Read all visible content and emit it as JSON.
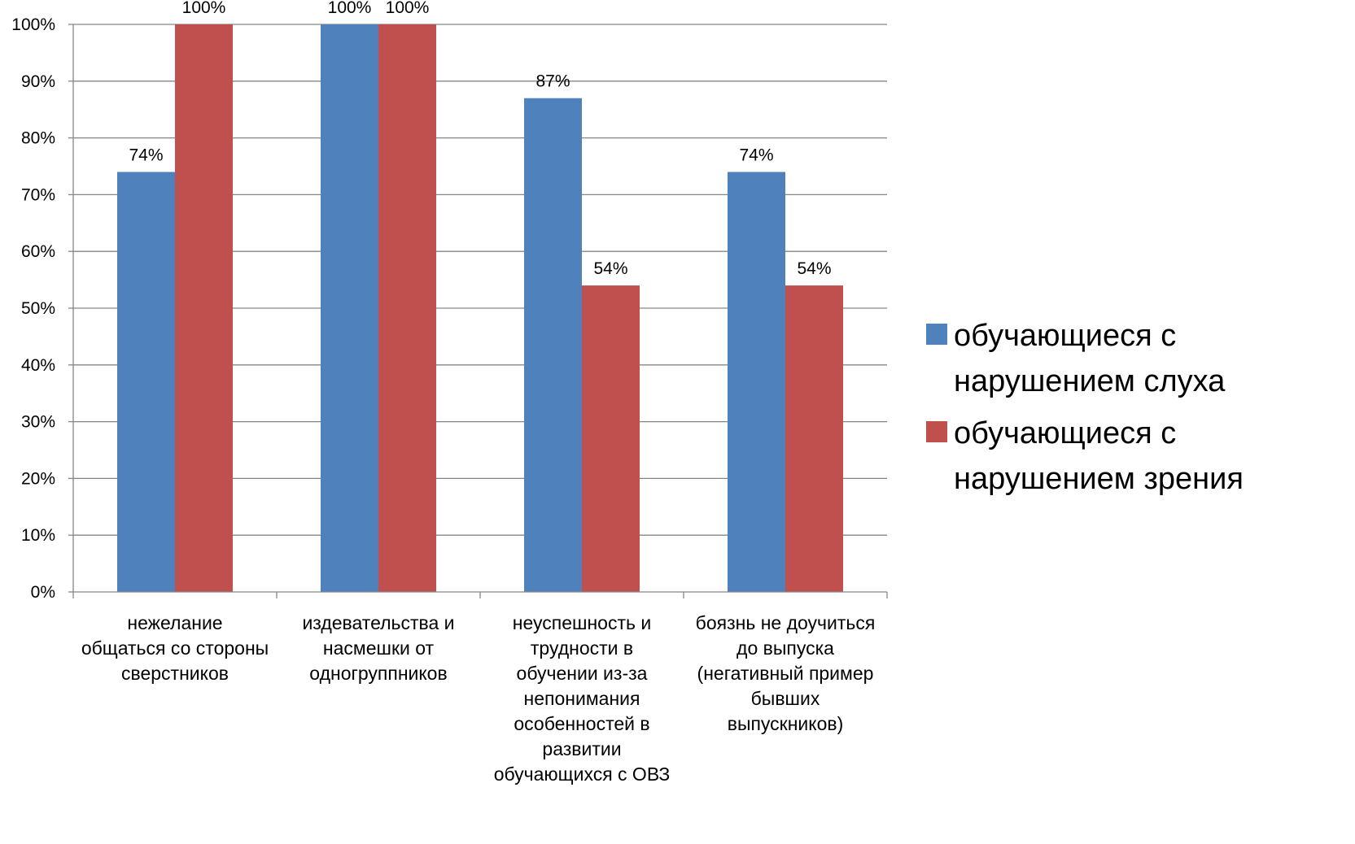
{
  "chart_data": {
    "type": "bar",
    "categories": [
      [
        "нежелание",
        "общаться со стороны",
        "сверстников"
      ],
      [
        "издевательства и",
        "насмешки от",
        "одногруппников"
      ],
      [
        "неуспешность и",
        "трудности в",
        "обучении из-за",
        "непонимания",
        "особенностей в",
        "развитии",
        "обучающихся с ОВЗ"
      ],
      [
        "боязнь не доучиться",
        "до выпуска",
        "(негативный пример",
        "бывших",
        "выпускников)"
      ]
    ],
    "series": [
      {
        "name_lines": [
          "обучающиеся с",
          "нарушением слуха"
        ],
        "color": "#4F81BD",
        "values": [
          74,
          100,
          87,
          74
        ],
        "labels": [
          "74%",
          "100%",
          "87%",
          "74%"
        ]
      },
      {
        "name_lines": [
          "обучающиеся с",
          "нарушением зрения"
        ],
        "color": "#C0504D",
        "values": [
          100,
          100,
          54,
          54
        ],
        "labels": [
          "100%",
          "100%",
          "54%",
          "54%"
        ]
      }
    ],
    "ylim": [
      0,
      100
    ],
    "yticks": [
      "0%",
      "10%",
      "20%",
      "30%",
      "40%",
      "50%",
      "60%",
      "70%",
      "80%",
      "90%",
      "100%"
    ],
    "grid": true,
    "legend": "right"
  }
}
